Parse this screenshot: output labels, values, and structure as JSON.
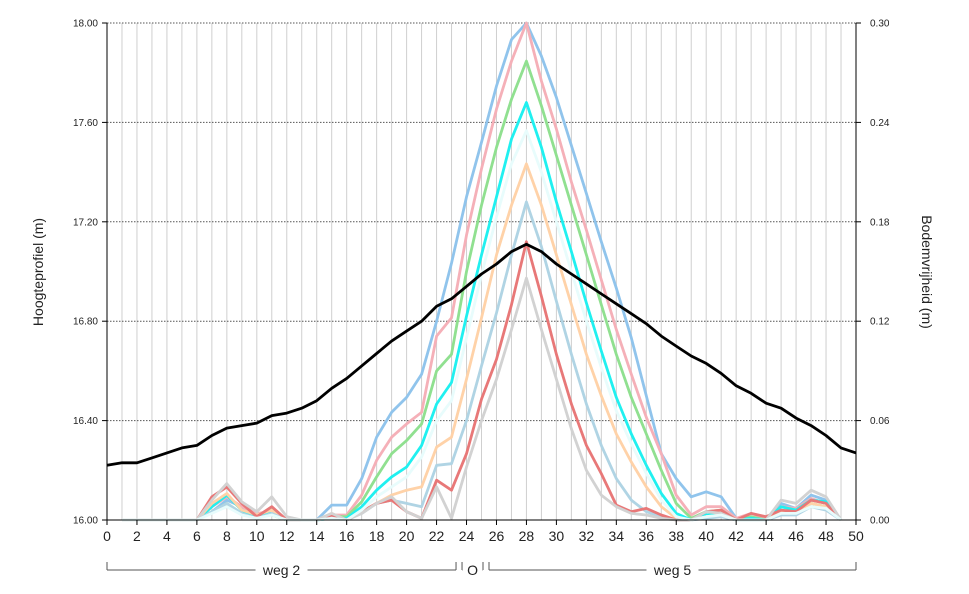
{
  "chart_data": {
    "type": "line",
    "ylabel": "Hoogteprofiel (m)",
    "y2label": "Bodemvrijheid (m)",
    "xlim": [
      0,
      50
    ],
    "ylim": [
      16.0,
      18.0
    ],
    "y2lim": [
      0.0,
      0.3
    ],
    "x_ticks": [
      "0",
      "2",
      "4",
      "6",
      "8",
      "10",
      "12",
      "14",
      "16",
      "18",
      "20",
      "22",
      "24",
      "26",
      "28",
      "30",
      "32",
      "34",
      "36",
      "38",
      "40",
      "42",
      "44",
      "46",
      "48",
      "50"
    ],
    "y_ticks": [
      "16.00",
      "16.40",
      "16.80",
      "17.20",
      "17.60",
      "18.00"
    ],
    "y2_ticks": [
      "0.00",
      "0.06",
      "0.12",
      "0.18",
      "0.24",
      "0.30"
    ],
    "grid": "vertical lines every 1 unit, dotted horizontal lines at y ticks",
    "segments": [
      {
        "label": "weg 2",
        "start": 0,
        "end": 23.5
      },
      {
        "label": "O",
        "start": 23.5,
        "end": 25.3
      },
      {
        "label": "weg 5",
        "start": 25.3,
        "end": 50
      }
    ],
    "profile": {
      "axis": "left",
      "color": "#000000",
      "x": [
        0,
        1,
        2,
        3,
        4,
        5,
        6,
        7,
        8,
        9,
        10,
        11,
        12,
        13,
        14,
        15,
        16,
        17,
        18,
        19,
        20,
        21,
        22,
        23,
        24,
        25,
        26,
        27,
        28,
        29,
        30,
        31,
        32,
        33,
        34,
        35,
        36,
        37,
        38,
        39,
        40,
        41,
        42,
        43,
        44,
        45,
        46,
        47,
        48,
        49,
        50
      ],
      "y": [
        16.22,
        16.23,
        16.23,
        16.25,
        16.27,
        16.29,
        16.3,
        16.34,
        16.37,
        16.38,
        16.39,
        16.42,
        16.43,
        16.45,
        16.48,
        16.53,
        16.57,
        16.62,
        16.67,
        16.72,
        16.76,
        16.8,
        16.86,
        16.89,
        16.94,
        16.99,
        17.03,
        17.08,
        17.11,
        17.08,
        17.03,
        16.99,
        16.95,
        16.91,
        16.87,
        16.83,
        16.79,
        16.74,
        16.7,
        16.66,
        16.63,
        16.59,
        16.54,
        16.51,
        16.47,
        16.45,
        16.41,
        16.38,
        16.34,
        16.29,
        16.27
      ]
    },
    "series": [
      {
        "axis": "right",
        "color": "#90c4ec",
        "x": [
          1,
          2,
          3,
          4,
          5,
          6,
          7,
          8,
          9,
          10,
          11,
          12,
          13,
          14,
          15,
          16,
          17,
          18,
          19,
          20,
          21,
          22,
          23,
          24,
          25,
          26,
          27,
          28,
          29,
          30,
          31,
          32,
          33,
          34,
          35,
          36,
          37,
          38,
          39,
          40,
          41,
          42,
          43,
          44,
          45,
          46,
          47,
          48,
          49
        ],
        "values": [
          0,
          0,
          0,
          0,
          0,
          0,
          0.005,
          0.012,
          0.008,
          0.002,
          0.005,
          0,
          0,
          0,
          0.009,
          0.009,
          0.025,
          0.05,
          0.065,
          0.074,
          0.088,
          0.12,
          0.155,
          0.195,
          0.228,
          0.262,
          0.29,
          0.3,
          0.28,
          0.255,
          0.226,
          0.197,
          0.168,
          0.14,
          0.11,
          0.075,
          0.04,
          0.025,
          0.014,
          0.017,
          0.014,
          0.001,
          0,
          0,
          0.01,
          0.007,
          0.015,
          0.012,
          0
        ]
      },
      {
        "axis": "right",
        "color": "#f5b0b8",
        "x": [
          1,
          2,
          3,
          4,
          5,
          6,
          7,
          8,
          9,
          10,
          11,
          12,
          13,
          14,
          15,
          16,
          17,
          18,
          19,
          20,
          21,
          22,
          23,
          24,
          25,
          26,
          27,
          28,
          29,
          30,
          31,
          32,
          33,
          34,
          35,
          36,
          37,
          38,
          39,
          40,
          41,
          42,
          43,
          44,
          45,
          46,
          47,
          48,
          49
        ],
        "values": [
          0,
          0,
          0,
          0,
          0,
          0,
          0.008,
          0.014,
          0.008,
          0.004,
          0.005,
          0,
          0,
          0,
          0.003,
          0.003,
          0.015,
          0.036,
          0.05,
          0.058,
          0.065,
          0.111,
          0.122,
          0.172,
          0.212,
          0.248,
          0.277,
          0.3,
          0.265,
          0.236,
          0.204,
          0.175,
          0.145,
          0.115,
          0.088,
          0.062,
          0.04,
          0.015,
          0.003,
          0.008,
          0.008,
          0.001,
          0.004,
          0.001,
          0.008,
          0.007,
          0.013,
          0.01,
          0
        ]
      },
      {
        "axis": "right",
        "color": "#90e090",
        "x": [
          1,
          2,
          3,
          4,
          5,
          6,
          7,
          8,
          9,
          10,
          11,
          12,
          13,
          14,
          15,
          16,
          17,
          18,
          19,
          20,
          21,
          22,
          23,
          24,
          25,
          26,
          27,
          28,
          29,
          30,
          31,
          32,
          33,
          34,
          35,
          36,
          37,
          38,
          39,
          40,
          41,
          42,
          43,
          44,
          45,
          46,
          47,
          48,
          49
        ],
        "values": [
          0,
          0,
          0,
          0,
          0,
          0,
          0.005,
          0.01,
          0.004,
          0.002,
          0.003,
          0,
          0,
          0,
          0.002,
          0.002,
          0.011,
          0.026,
          0.04,
          0.048,
          0.058,
          0.09,
          0.1,
          0.15,
          0.19,
          0.225,
          0.254,
          0.277,
          0.25,
          0.22,
          0.19,
          0.16,
          0.13,
          0.1,
          0.074,
          0.052,
          0.03,
          0.01,
          0.001,
          0.005,
          0.006,
          0,
          0.002,
          0,
          0.005,
          0.005,
          0.01,
          0.008,
          0
        ]
      },
      {
        "axis": "right",
        "color": "#20f0f0",
        "x": [
          1,
          2,
          3,
          4,
          5,
          6,
          7,
          8,
          9,
          10,
          11,
          12,
          13,
          14,
          15,
          16,
          17,
          18,
          19,
          20,
          21,
          22,
          23,
          24,
          25,
          26,
          27,
          28,
          29,
          30,
          31,
          32,
          33,
          34,
          35,
          36,
          37,
          38,
          39,
          40,
          41,
          42,
          43,
          44,
          45,
          46,
          47,
          48,
          49
        ],
        "values": [
          0,
          0,
          0,
          0,
          0,
          0,
          0.008,
          0.015,
          0.006,
          0.001,
          0.006,
          0,
          0,
          0,
          0.001,
          0.001,
          0.008,
          0.018,
          0.026,
          0.032,
          0.045,
          0.07,
          0.083,
          0.123,
          0.16,
          0.195,
          0.23,
          0.252,
          0.225,
          0.192,
          0.162,
          0.131,
          0.102,
          0.074,
          0.052,
          0.033,
          0.016,
          0.004,
          0,
          0.003,
          0.004,
          0,
          0.001,
          0,
          0.008,
          0.006,
          0.012,
          0.011,
          0
        ]
      },
      {
        "axis": "right",
        "color": "#ffd2a8",
        "x": [
          1,
          2,
          3,
          4,
          5,
          6,
          7,
          8,
          9,
          10,
          11,
          12,
          13,
          14,
          15,
          16,
          17,
          18,
          19,
          20,
          21,
          22,
          23,
          24,
          25,
          26,
          27,
          28,
          29,
          30,
          31,
          32,
          33,
          34,
          35,
          36,
          37,
          38,
          39,
          40,
          41,
          42,
          43,
          44,
          45,
          46,
          47,
          48,
          49
        ],
        "values": [
          0,
          0,
          0,
          0,
          0,
          0,
          0.01,
          0.016,
          0.006,
          0.003,
          0.006,
          0,
          0,
          0,
          0.004,
          0,
          0.005,
          0.01,
          0.015,
          0.018,
          0.02,
          0.044,
          0.05,
          0.085,
          0.122,
          0.16,
          0.19,
          0.215,
          0.19,
          0.16,
          0.13,
          0.1,
          0.075,
          0.052,
          0.035,
          0.02,
          0.008,
          0.001,
          0,
          0.002,
          0.003,
          0,
          0,
          0,
          0.005,
          0.004,
          0.01,
          0.008,
          0
        ]
      },
      {
        "axis": "right",
        "color": "#b0d4e4",
        "x": [
          1,
          2,
          3,
          4,
          5,
          6,
          7,
          8,
          9,
          10,
          11,
          12,
          13,
          14,
          15,
          16,
          17,
          18,
          19,
          20,
          21,
          22,
          23,
          24,
          25,
          26,
          27,
          28,
          29,
          30,
          31,
          32,
          33,
          34,
          35,
          36,
          37,
          38,
          39,
          40,
          41,
          42,
          43,
          44,
          45,
          46,
          47,
          48,
          49
        ],
        "values": [
          0,
          0,
          0,
          0,
          0,
          0,
          0.005,
          0.01,
          0.004,
          0.001,
          0.004,
          0,
          0,
          0,
          0.002,
          0,
          0.004,
          0.01,
          0.012,
          0.01,
          0.008,
          0.033,
          0.034,
          0.06,
          0.093,
          0.125,
          0.16,
          0.192,
          0.165,
          0.132,
          0.1,
          0.07,
          0.045,
          0.025,
          0.012,
          0.005,
          0.002,
          0,
          0,
          0.001,
          0.002,
          0,
          0,
          0,
          0.003,
          0.003,
          0.008,
          0.006,
          0
        ]
      },
      {
        "axis": "right",
        "color": "#e87878",
        "x": [
          1,
          2,
          3,
          4,
          5,
          6,
          7,
          8,
          9,
          10,
          11,
          12,
          13,
          14,
          15,
          16,
          17,
          18,
          19,
          20,
          21,
          22,
          23,
          24,
          25,
          26,
          27,
          28,
          29,
          30,
          31,
          32,
          33,
          34,
          35,
          36,
          37,
          38,
          39,
          40,
          41,
          42,
          43,
          44,
          45,
          46,
          47,
          48,
          49
        ],
        "values": [
          0,
          0,
          0,
          0,
          0,
          0,
          0.014,
          0.02,
          0.01,
          0.002,
          0.008,
          0,
          0,
          0,
          0.003,
          0,
          0.005,
          0.01,
          0.012,
          0.005,
          0.001,
          0.024,
          0.018,
          0.04,
          0.073,
          0.097,
          0.13,
          0.168,
          0.135,
          0.1,
          0.07,
          0.045,
          0.028,
          0.009,
          0.005,
          0.007,
          0.003,
          0,
          0,
          0.005,
          0.006,
          0,
          0.004,
          0.002,
          0.006,
          0.005,
          0.012,
          0.01,
          0
        ]
      },
      {
        "axis": "right",
        "color": "#d2d2d2",
        "x": [
          1,
          2,
          3,
          4,
          5,
          6,
          7,
          8,
          9,
          10,
          11,
          12,
          13,
          14,
          15,
          16,
          17,
          18,
          19,
          20,
          21,
          22,
          23,
          24,
          25,
          26,
          27,
          28,
          29,
          30,
          31,
          32,
          33,
          34,
          35,
          36,
          37,
          38,
          39,
          40,
          41,
          42,
          43,
          44,
          45,
          46,
          47,
          48,
          49
        ],
        "values": [
          0,
          0,
          0,
          0,
          0,
          0,
          0.012,
          0.022,
          0.011,
          0.005,
          0.014,
          0.002,
          0,
          0,
          0.004,
          0,
          0.004,
          0.01,
          0.014,
          0.005,
          0.001,
          0.02,
          0.001,
          0.032,
          0.06,
          0.085,
          0.115,
          0.146,
          0.115,
          0.085,
          0.055,
          0.03,
          0.015,
          0.008,
          0.004,
          0.003,
          0.001,
          0,
          0,
          0.005,
          0.004,
          0,
          0,
          0,
          0.012,
          0.01,
          0.018,
          0.014,
          0
        ]
      },
      {
        "axis": "right",
        "color": "#e8fcfc",
        "x": [
          1,
          2,
          3,
          4,
          5,
          6,
          7,
          8,
          9,
          10,
          11,
          12,
          13,
          14,
          15,
          16,
          17,
          18,
          19,
          20,
          21,
          22,
          23,
          24,
          25,
          26,
          27,
          28,
          29,
          30,
          31,
          32,
          33,
          34,
          35,
          36,
          37,
          38,
          39,
          40,
          41,
          42,
          43,
          44,
          45,
          46,
          47,
          48,
          49
        ],
        "values": [
          0,
          0,
          0,
          0,
          0,
          0,
          0.004,
          0.008,
          0.003,
          0.001,
          0.003,
          0,
          0,
          0,
          0.001,
          0,
          0.006,
          0.014,
          0.02,
          0.026,
          0.038,
          0.06,
          0.072,
          0.11,
          0.148,
          0.183,
          0.215,
          0.235,
          0.21,
          0.18,
          0.15,
          0.12,
          0.092,
          0.066,
          0.046,
          0.028,
          0.012,
          0.002,
          0,
          0.002,
          0.003,
          0,
          0,
          0,
          0.004,
          0.004,
          0.008,
          0.007,
          0
        ]
      }
    ]
  }
}
